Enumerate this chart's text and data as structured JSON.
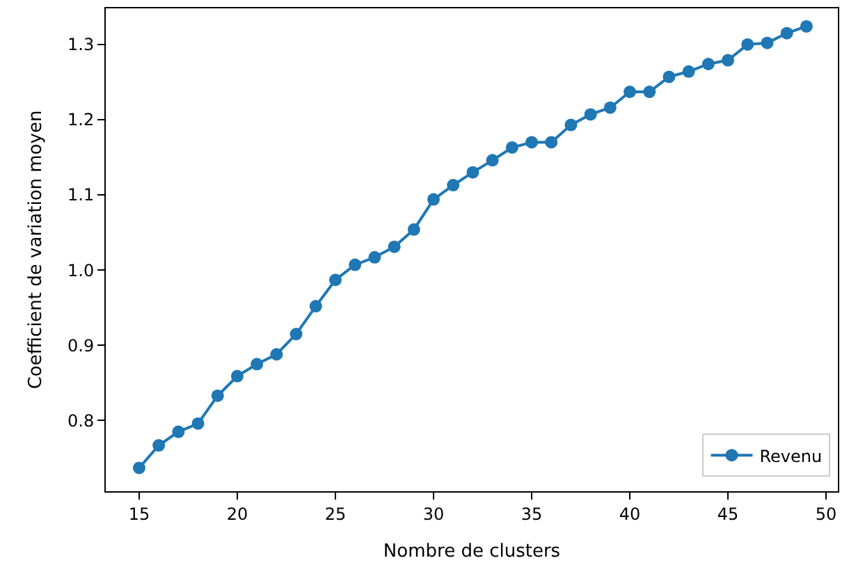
{
  "chart_data": {
    "type": "line",
    "xlabel": "Nombre de clusters",
    "ylabel": "Coefficient de variation moyen",
    "x": [
      15,
      16,
      17,
      18,
      19,
      20,
      21,
      22,
      23,
      24,
      25,
      26,
      27,
      28,
      29,
      30,
      31,
      32,
      33,
      34,
      35,
      36,
      37,
      38,
      39,
      40,
      41,
      42,
      43,
      44,
      45,
      46,
      47,
      48,
      49
    ],
    "series": [
      {
        "name": "Revenu",
        "color": "#1f77b4",
        "values": [
          0.737,
          0.767,
          0.785,
          0.796,
          0.833,
          0.859,
          0.875,
          0.888,
          0.915,
          0.952,
          0.987,
          1.007,
          1.017,
          1.031,
          1.054,
          1.094,
          1.113,
          1.13,
          1.146,
          1.163,
          1.17,
          1.17,
          1.193,
          1.207,
          1.216,
          1.237,
          1.237,
          1.257,
          1.264,
          1.274,
          1.279,
          1.3,
          1.302,
          1.315,
          1.324
        ]
      }
    ],
    "xlim": [
      13.3,
      50.6
    ],
    "xticks": [
      15,
      20,
      25,
      30,
      35,
      40,
      45,
      50
    ],
    "ylim": [
      0.706,
      1.348
    ],
    "yticks": [
      {
        "value": 0.8,
        "label": "0.8"
      },
      {
        "value": 0.9,
        "label": "0.9"
      },
      {
        "value": 1.0,
        "label": "1.0"
      },
      {
        "value": 1.1,
        "label": "1.1"
      },
      {
        "value": 1.2,
        "label": "1.2"
      },
      {
        "value": 1.3,
        "label": "1.3"
      }
    ],
    "marker": "circle",
    "line_style": "solid",
    "legend": "bottom right"
  }
}
